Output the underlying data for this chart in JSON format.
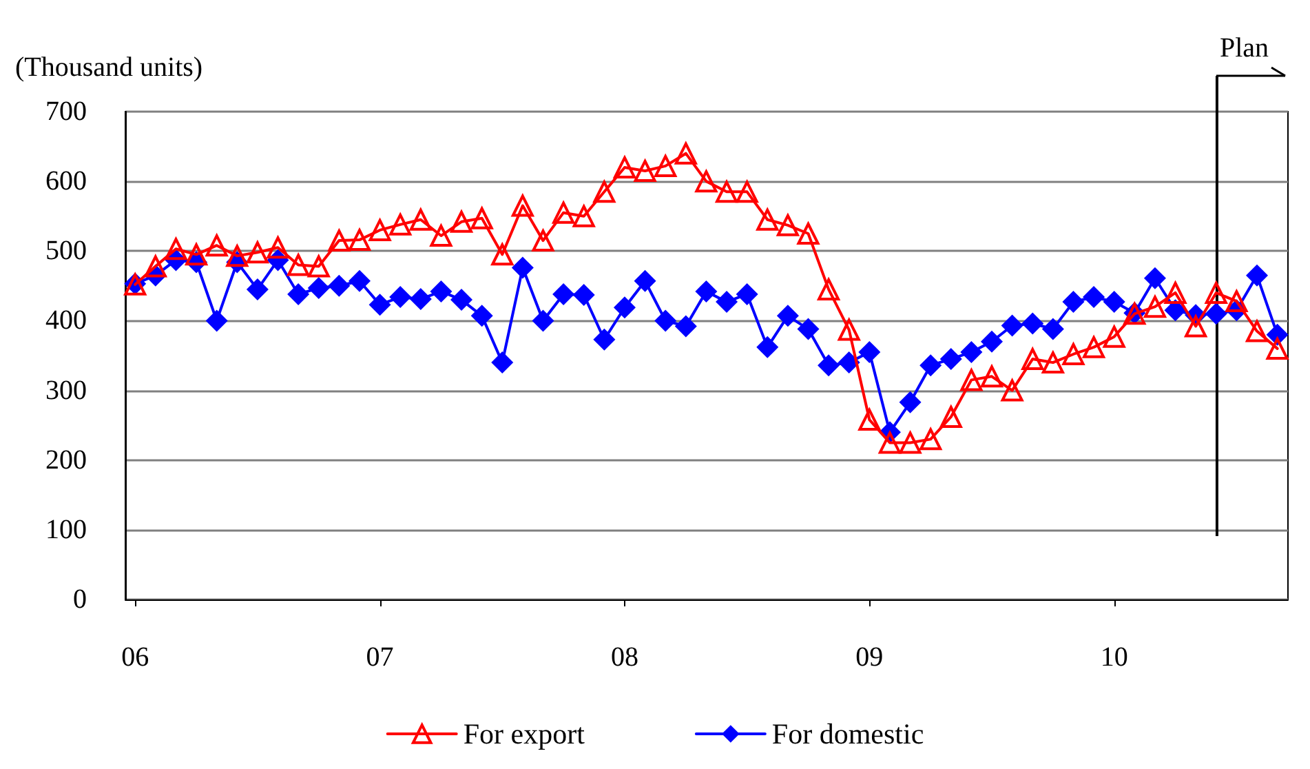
{
  "chart_data": {
    "type": "line",
    "ylabel": "(Thousand units)",
    "x": [
      2006,
      2006.0833,
      2006.1667,
      2006.25,
      2006.3333,
      2006.4167,
      2006.5,
      2006.5833,
      2006.6667,
      2006.75,
      2006.8333,
      2006.9167,
      2007,
      2007.0833,
      2007.1667,
      2007.25,
      2007.3333,
      2007.4167,
      2007.5,
      2007.5833,
      2007.6667,
      2007.75,
      2007.8333,
      2007.9167,
      2008,
      2008.0833,
      2008.1667,
      2008.25,
      2008.3333,
      2008.4167,
      2008.5,
      2008.5833,
      2008.6667,
      2008.75,
      2008.8333,
      2008.9167,
      2009,
      2009.0833,
      2009.1667,
      2009.25,
      2009.3333,
      2009.4167,
      2009.5,
      2009.5833,
      2009.6667,
      2009.75,
      2009.8333,
      2009.9167,
      2010,
      2010.0833,
      2010.1667,
      2010.25,
      2010.3333,
      2010.4167,
      2010.5,
      2010.5833,
      2010.6667
    ],
    "series": [
      {
        "name": "For export",
        "color": "#ff0000",
        "marker": "triangle",
        "values": [
          452,
          478,
          503,
          495,
          508,
          493,
          498,
          505,
          480,
          478,
          515,
          516,
          530,
          538,
          545,
          522,
          542,
          547,
          495,
          565,
          515,
          555,
          550,
          585,
          620,
          615,
          622,
          640,
          600,
          585,
          585,
          545,
          537,
          525,
          445,
          387,
          258,
          225,
          225,
          230,
          262,
          315,
          320,
          300,
          345,
          340,
          352,
          362,
          377,
          410,
          420,
          440,
          392,
          440,
          428,
          385,
          360
        ]
      },
      {
        "name": "For domestic",
        "color": "#0000ff",
        "marker": "diamond",
        "values": [
          453,
          465,
          487,
          484,
          400,
          484,
          445,
          487,
          438,
          447,
          450,
          457,
          423,
          434,
          431,
          442,
          430,
          407,
          340,
          476,
          400,
          438,
          437,
          373,
          419,
          457,
          400,
          392,
          442,
          427,
          438,
          362,
          407,
          388,
          336,
          340,
          355,
          240,
          283,
          336,
          345,
          355,
          370,
          393,
          396,
          388,
          427,
          434,
          427,
          411,
          461,
          415,
          408,
          410,
          415,
          465,
          380
        ]
      }
    ],
    "xlim": [
      2005.96,
      2010.71
    ],
    "xticks": [
      {
        "value": 2006,
        "label": "06"
      },
      {
        "value": 2007,
        "label": "07"
      },
      {
        "value": 2008,
        "label": "08"
      },
      {
        "value": 2009,
        "label": "09"
      },
      {
        "value": 2010,
        "label": "10"
      }
    ],
    "ylim": [
      0,
      700
    ],
    "yticks": [
      0,
      100,
      200,
      300,
      400,
      500,
      600,
      700
    ],
    "ref_lines": [
      {
        "axis": "x",
        "value": 2010.42,
        "label": "Plan",
        "color": "#000000"
      }
    ],
    "grid": "y",
    "legend": "bottom"
  }
}
